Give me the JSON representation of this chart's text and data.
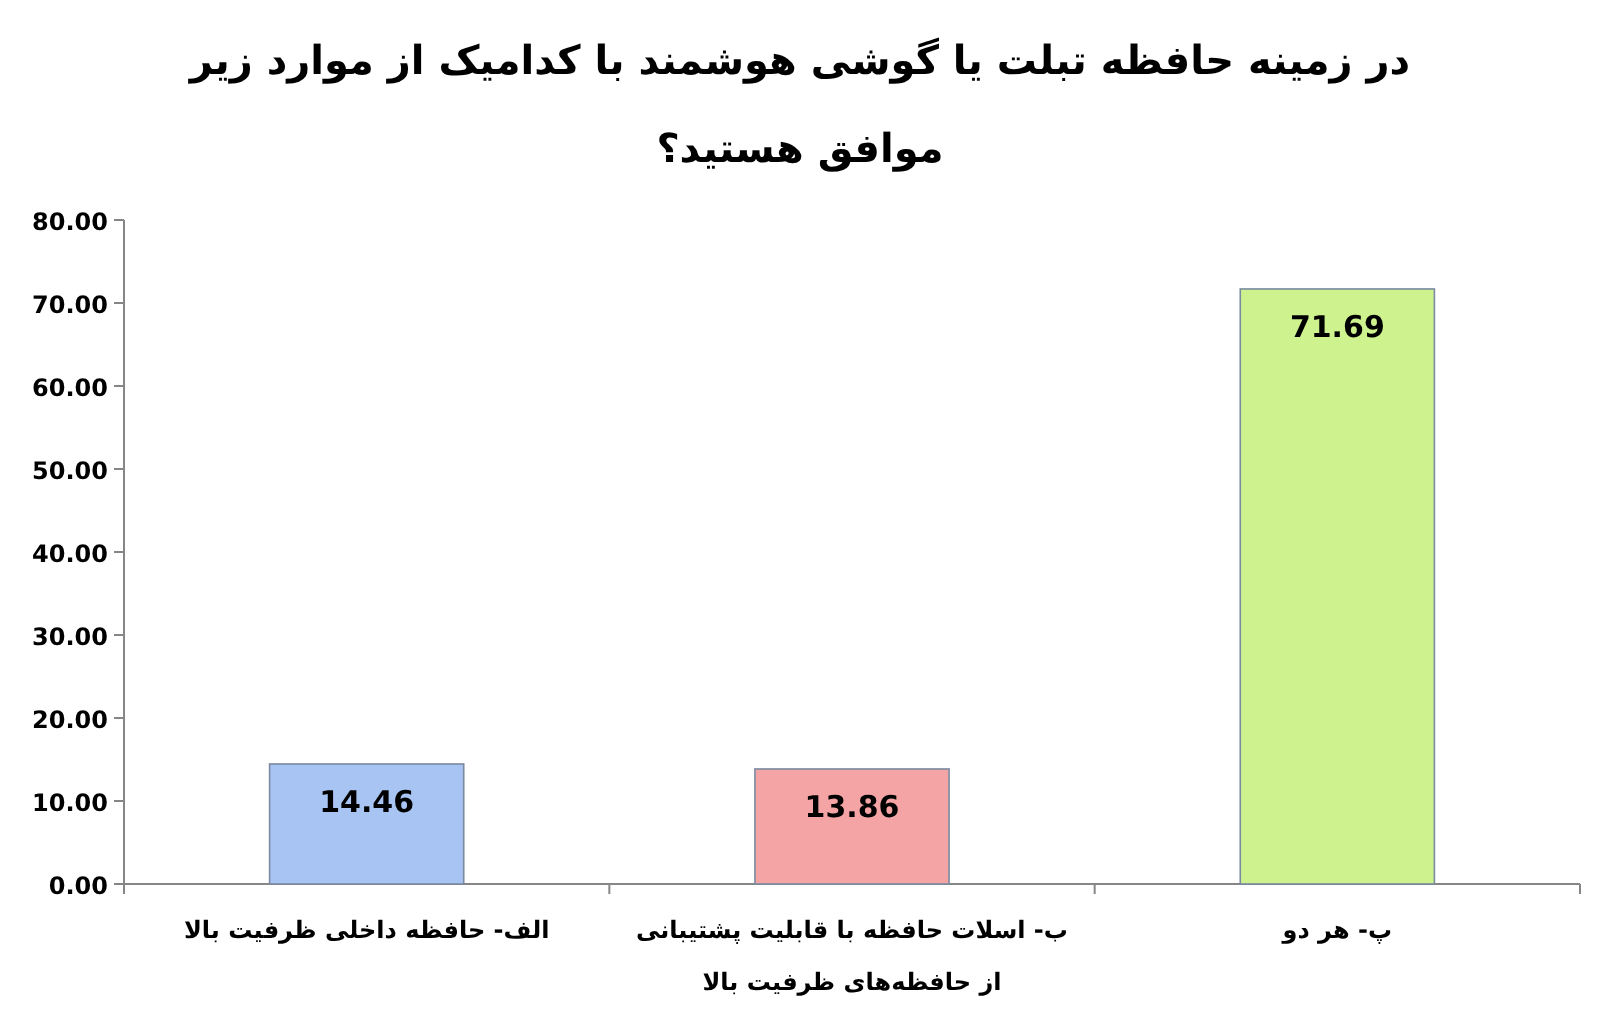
{
  "chart_data": {
    "type": "bar",
    "title": "در زمینه حافظه تبلت یا گوشی هوشمند با کدامیک از موارد زیر موافق هستید؟",
    "categories": [
      "الف- حافظه داخلی ظرفیت بالا",
      "ب- اسلات حافظه با قابلیت پشتیبانی از حافظه‌های ظرفیت بالا",
      "پ- هر دو"
    ],
    "values": [
      14.46,
      13.86,
      71.69
    ],
    "colors": [
      "#a8c4f2",
      "#f4a4a4",
      "#cdf28e"
    ],
    "ylim": [
      0,
      80
    ],
    "yticks": [
      {
        "value": 0,
        "label": "0.00"
      },
      {
        "value": 10,
        "label": "10.00"
      },
      {
        "value": 20,
        "label": "20.00"
      },
      {
        "value": 30,
        "label": "30.00"
      },
      {
        "value": 40,
        "label": "40.00"
      },
      {
        "value": 50,
        "label": "50.00"
      },
      {
        "value": 60,
        "label": "60.00"
      },
      {
        "value": 70,
        "label": "70.00"
      },
      {
        "value": 80,
        "label": "80.00"
      }
    ],
    "data_labels": true,
    "grid": false
  }
}
